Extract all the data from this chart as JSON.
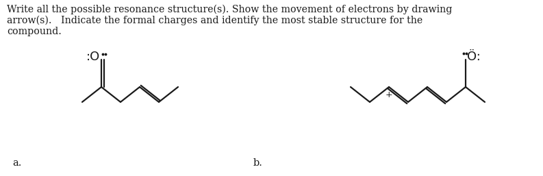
{
  "title_lines": [
    "Write all the possible resonance structure(s). Show the movement of electrons by drawing",
    "arrow(s).   Indicate the formal charges and identify the most stable structure for the",
    "compound."
  ],
  "label_a": "a.",
  "label_b": "b.",
  "bg_color": "#ffffff",
  "text_color": "#1a1a1a",
  "line_color": "#1a1a1a",
  "font_size_title": 10.2,
  "font_size_label": 10.5
}
